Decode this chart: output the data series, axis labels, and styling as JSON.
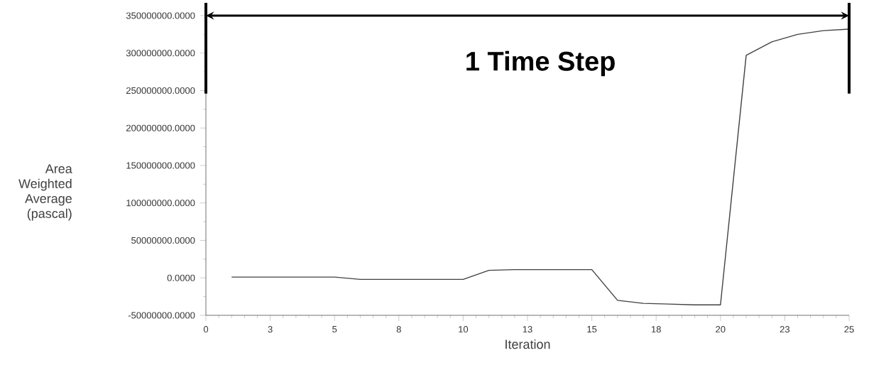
{
  "chart_data": {
    "type": "line",
    "xlabel": "Iteration",
    "ylabel": "Area Weighted Average (pascal)",
    "annotations": [
      "1 Time Step"
    ],
    "x": [
      1,
      2,
      3,
      4,
      5,
      6,
      7,
      8,
      9,
      10,
      11,
      12,
      13,
      14,
      15,
      16,
      17,
      18,
      19,
      20,
      21,
      22,
      23,
      24,
      25
    ],
    "values": [
      1000000,
      1000000,
      1000000,
      1000000,
      1000000,
      -2000000,
      -2000000,
      -2000000,
      -2000000,
      -2000000,
      10000000,
      11000000,
      11000000,
      11000000,
      11000000,
      -30000000,
      -34000000,
      -35000000,
      -36000000,
      -36000000,
      297000000,
      315000000,
      325000000,
      330000000,
      332000000
    ],
    "color": "#404040",
    "xlim": [
      0,
      25
    ],
    "xticks": [
      0,
      {
        "value": 2.5,
        "label": "3"
      },
      5,
      {
        "value": 7.5,
        "label": "8"
      },
      10,
      {
        "value": 12.5,
        "label": "13"
      },
      15,
      {
        "value": 17.5,
        "label": "18"
      },
      20,
      {
        "value": 22.5,
        "label": "23"
      },
      25
    ],
    "ylim": [
      -50000000,
      350000000
    ],
    "yticks": [
      {
        "value": -50000000,
        "label": "-50000000.0000"
      },
      {
        "value": 0,
        "label": "0.0000"
      },
      {
        "value": 50000000,
        "label": "50000000.0000"
      },
      {
        "value": 100000000,
        "label": "100000000.0000"
      },
      {
        "value": 150000000,
        "label": "150000000.0000"
      },
      {
        "value": 200000000,
        "label": "200000000.0000"
      },
      {
        "value": 250000000,
        "label": "250000000.0000"
      },
      {
        "value": 300000000,
        "label": "300000000.0000"
      },
      {
        "value": 350000000,
        "label": "350000000.0000"
      }
    ]
  }
}
